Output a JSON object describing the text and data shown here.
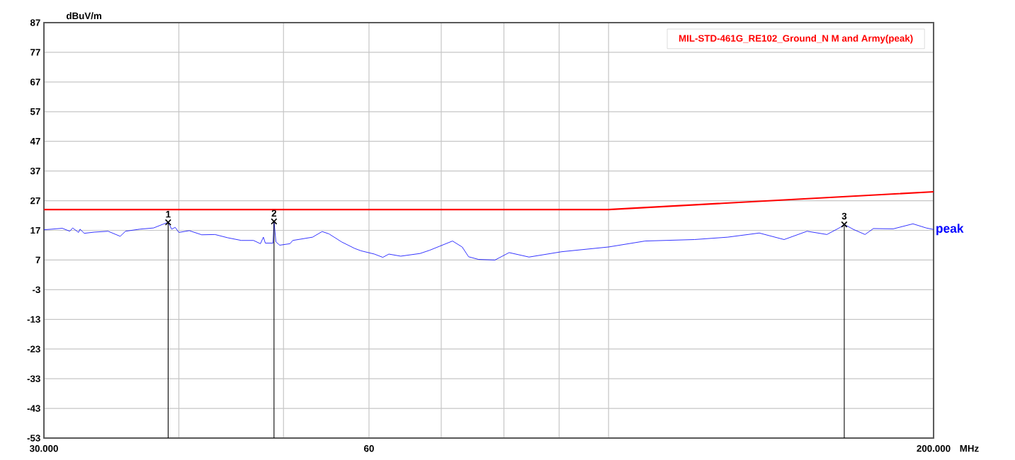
{
  "chart_data": {
    "type": "line",
    "xlabel": "MHz",
    "ylabel": "dBuV/m",
    "log": "x",
    "grid": true,
    "legend": "top right",
    "xlim": [
      30,
      200
    ],
    "ylim": [
      -53,
      87
    ],
    "xticks": [
      {
        "value": 30,
        "label": "30.000"
      },
      {
        "value": 40,
        "label": null
      },
      {
        "value": 50,
        "label": null
      },
      {
        "value": 60,
        "label": "60"
      },
      {
        "value": 70,
        "label": null
      },
      {
        "value": 80,
        "label": null
      },
      {
        "value": 90,
        "label": null
      },
      {
        "value": 100,
        "label": null
      },
      {
        "value": 200,
        "label": "200.000"
      }
    ],
    "yticks": [
      -53,
      -43,
      -33,
      -23,
      -13,
      -3,
      7,
      17,
      27,
      37,
      47,
      57,
      67,
      77,
      87
    ],
    "series": [
      {
        "name": "MIL-STD-461G_RE102_Ground_N M and Army(peak)",
        "color": "#ff0000",
        "x": [
          30,
          100,
          200
        ],
        "values": [
          24,
          24,
          30
        ]
      },
      {
        "name": "peak",
        "color": "#0000ff",
        "x": [
          30.0,
          30.5,
          31.2,
          31.7,
          31.9,
          32.3,
          32.4,
          32.7,
          33.4,
          34.4,
          35.3,
          35.7,
          36.8,
          37.9,
          38.7,
          39.1,
          39.4,
          39.7,
          40.0,
          40.9,
          42.0,
          43.2,
          44.4,
          45.7,
          46.9,
          47.6,
          47.9,
          48.1,
          48.9,
          49.0,
          49.2,
          49.6,
          50.7,
          51.0,
          53.2,
          54.3,
          55.1,
          56.6,
          58.2,
          59.0,
          60.7,
          61.8,
          62.6,
          64.2,
          66.9,
          68.3,
          69.7,
          71.7,
          73.2,
          74.2,
          75.8,
          78.5,
          80.9,
          84.4,
          90.5,
          100.0,
          108.1,
          120.1,
          128.9,
          137.9,
          145.4,
          152.7,
          159.3,
          163.9,
          165.3,
          168.6,
          172.8,
          175.9,
          183.5,
          191.4,
          196.9,
          200
        ],
        "values": [
          17.2,
          17.4,
          17.7,
          16.7,
          17.8,
          16.3,
          17.4,
          16.0,
          16.4,
          16.7,
          15.0,
          16.7,
          17.4,
          17.8,
          19.1,
          19.7,
          17.4,
          18.0,
          16.3,
          16.9,
          15.5,
          15.6,
          14.5,
          13.6,
          13.6,
          12.5,
          14.7,
          12.7,
          12.7,
          20.0,
          13.1,
          12.0,
          12.5,
          13.6,
          14.7,
          16.6,
          15.8,
          13.1,
          10.9,
          10.1,
          9.0,
          7.9,
          9.0,
          8.3,
          9.2,
          10.3,
          11.6,
          13.4,
          11.4,
          8.1,
          7.2,
          7.0,
          9.5,
          8.0,
          9.8,
          11.4,
          13.4,
          13.9,
          14.7,
          16.1,
          13.9,
          16.7,
          15.6,
          18.0,
          19.0,
          17.3,
          15.6,
          17.6,
          17.5,
          19.2,
          17.8,
          17.3
        ]
      },
      {
        "type": "lollipop",
        "color": "#000000",
        "marker": "cross",
        "x": [
          39.1,
          49.0,
          165.3
        ],
        "values": [
          19.7,
          20.0,
          19.0
        ]
      }
    ],
    "annotations": [
      {
        "text": "1",
        "x": 39.1,
        "y": 19.7
      },
      {
        "text": "2",
        "x": 49.0,
        "y": 20.0
      },
      {
        "text": "3",
        "x": 165.3,
        "y": 19.0
      }
    ]
  }
}
